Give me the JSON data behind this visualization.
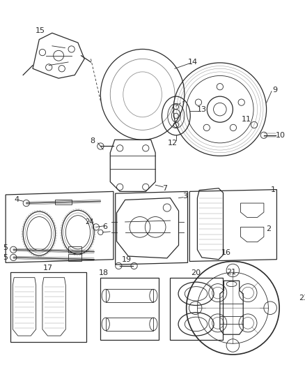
{
  "bg_color": "#ffffff",
  "line_color": "#2a2a2a",
  "lw_thin": 0.6,
  "lw_med": 0.9,
  "lw_thick": 1.2,
  "figsize": [
    4.38,
    5.33
  ],
  "dpi": 100
}
